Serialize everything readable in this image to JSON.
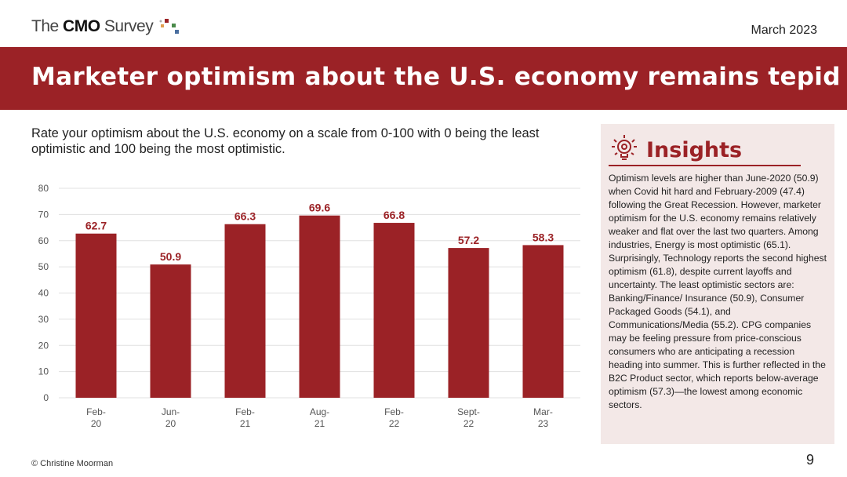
{
  "header": {
    "logo_pre": "The ",
    "logo_bold": "CMO",
    "logo_post": " Survey",
    "date": "March 2023"
  },
  "title": "Marketer optimism about the U.S. economy remains tepid",
  "question": "Rate your optimism about the U.S. economy on a scale from 0-100 with 0 being the least optimistic and 100 being the most optimistic.",
  "colors": {
    "accent": "#9b2226",
    "panel": "#f3e8e7"
  },
  "chart_data": {
    "type": "bar",
    "categories": [
      [
        "Feb-",
        "20"
      ],
      [
        "Jun-",
        "20"
      ],
      [
        "Feb-",
        "21"
      ],
      [
        "Aug-",
        "21"
      ],
      [
        "Feb-",
        "22"
      ],
      [
        "Sept-",
        "22"
      ],
      [
        "Mar-",
        "23"
      ]
    ],
    "values": [
      62.7,
      50.9,
      66.3,
      69.6,
      66.8,
      57.2,
      58.3
    ],
    "ylim": [
      0,
      80
    ],
    "yticks": [
      0,
      10,
      20,
      30,
      40,
      50,
      60,
      70,
      80
    ],
    "grid": true,
    "data_labels": [
      "62.7",
      "50.9",
      "66.3",
      "69.6",
      "66.8",
      "57.2",
      "58.3"
    ]
  },
  "insights": {
    "icon": "lightbulb-icon",
    "title": "Insights",
    "body": "Optimism levels are higher than June-2020 (50.9) when Covid hit hard and February-2009 (47.4) following the Great Recession. However, marketer optimism for the U.S. economy remains relatively weaker and flat over the last two quarters. Among industries, Energy is most optimistic (65.1). Surprisingly, Technology reports the second highest optimism (61.8), despite current layoffs and uncertainty. The least optimistic sectors are: Banking/Finance/ Insurance (50.9), Consumer Packaged Goods (54.1), and Communications/Media (55.2). CPG companies may be feeling pressure from price-conscious consumers who are anticipating a recession heading into summer. This is further reflected in the B2C Product sector, which reports below-average optimism (57.3)—the lowest among economic sectors."
  },
  "footer": {
    "copyright": "© Christine Moorman",
    "page": "9"
  }
}
